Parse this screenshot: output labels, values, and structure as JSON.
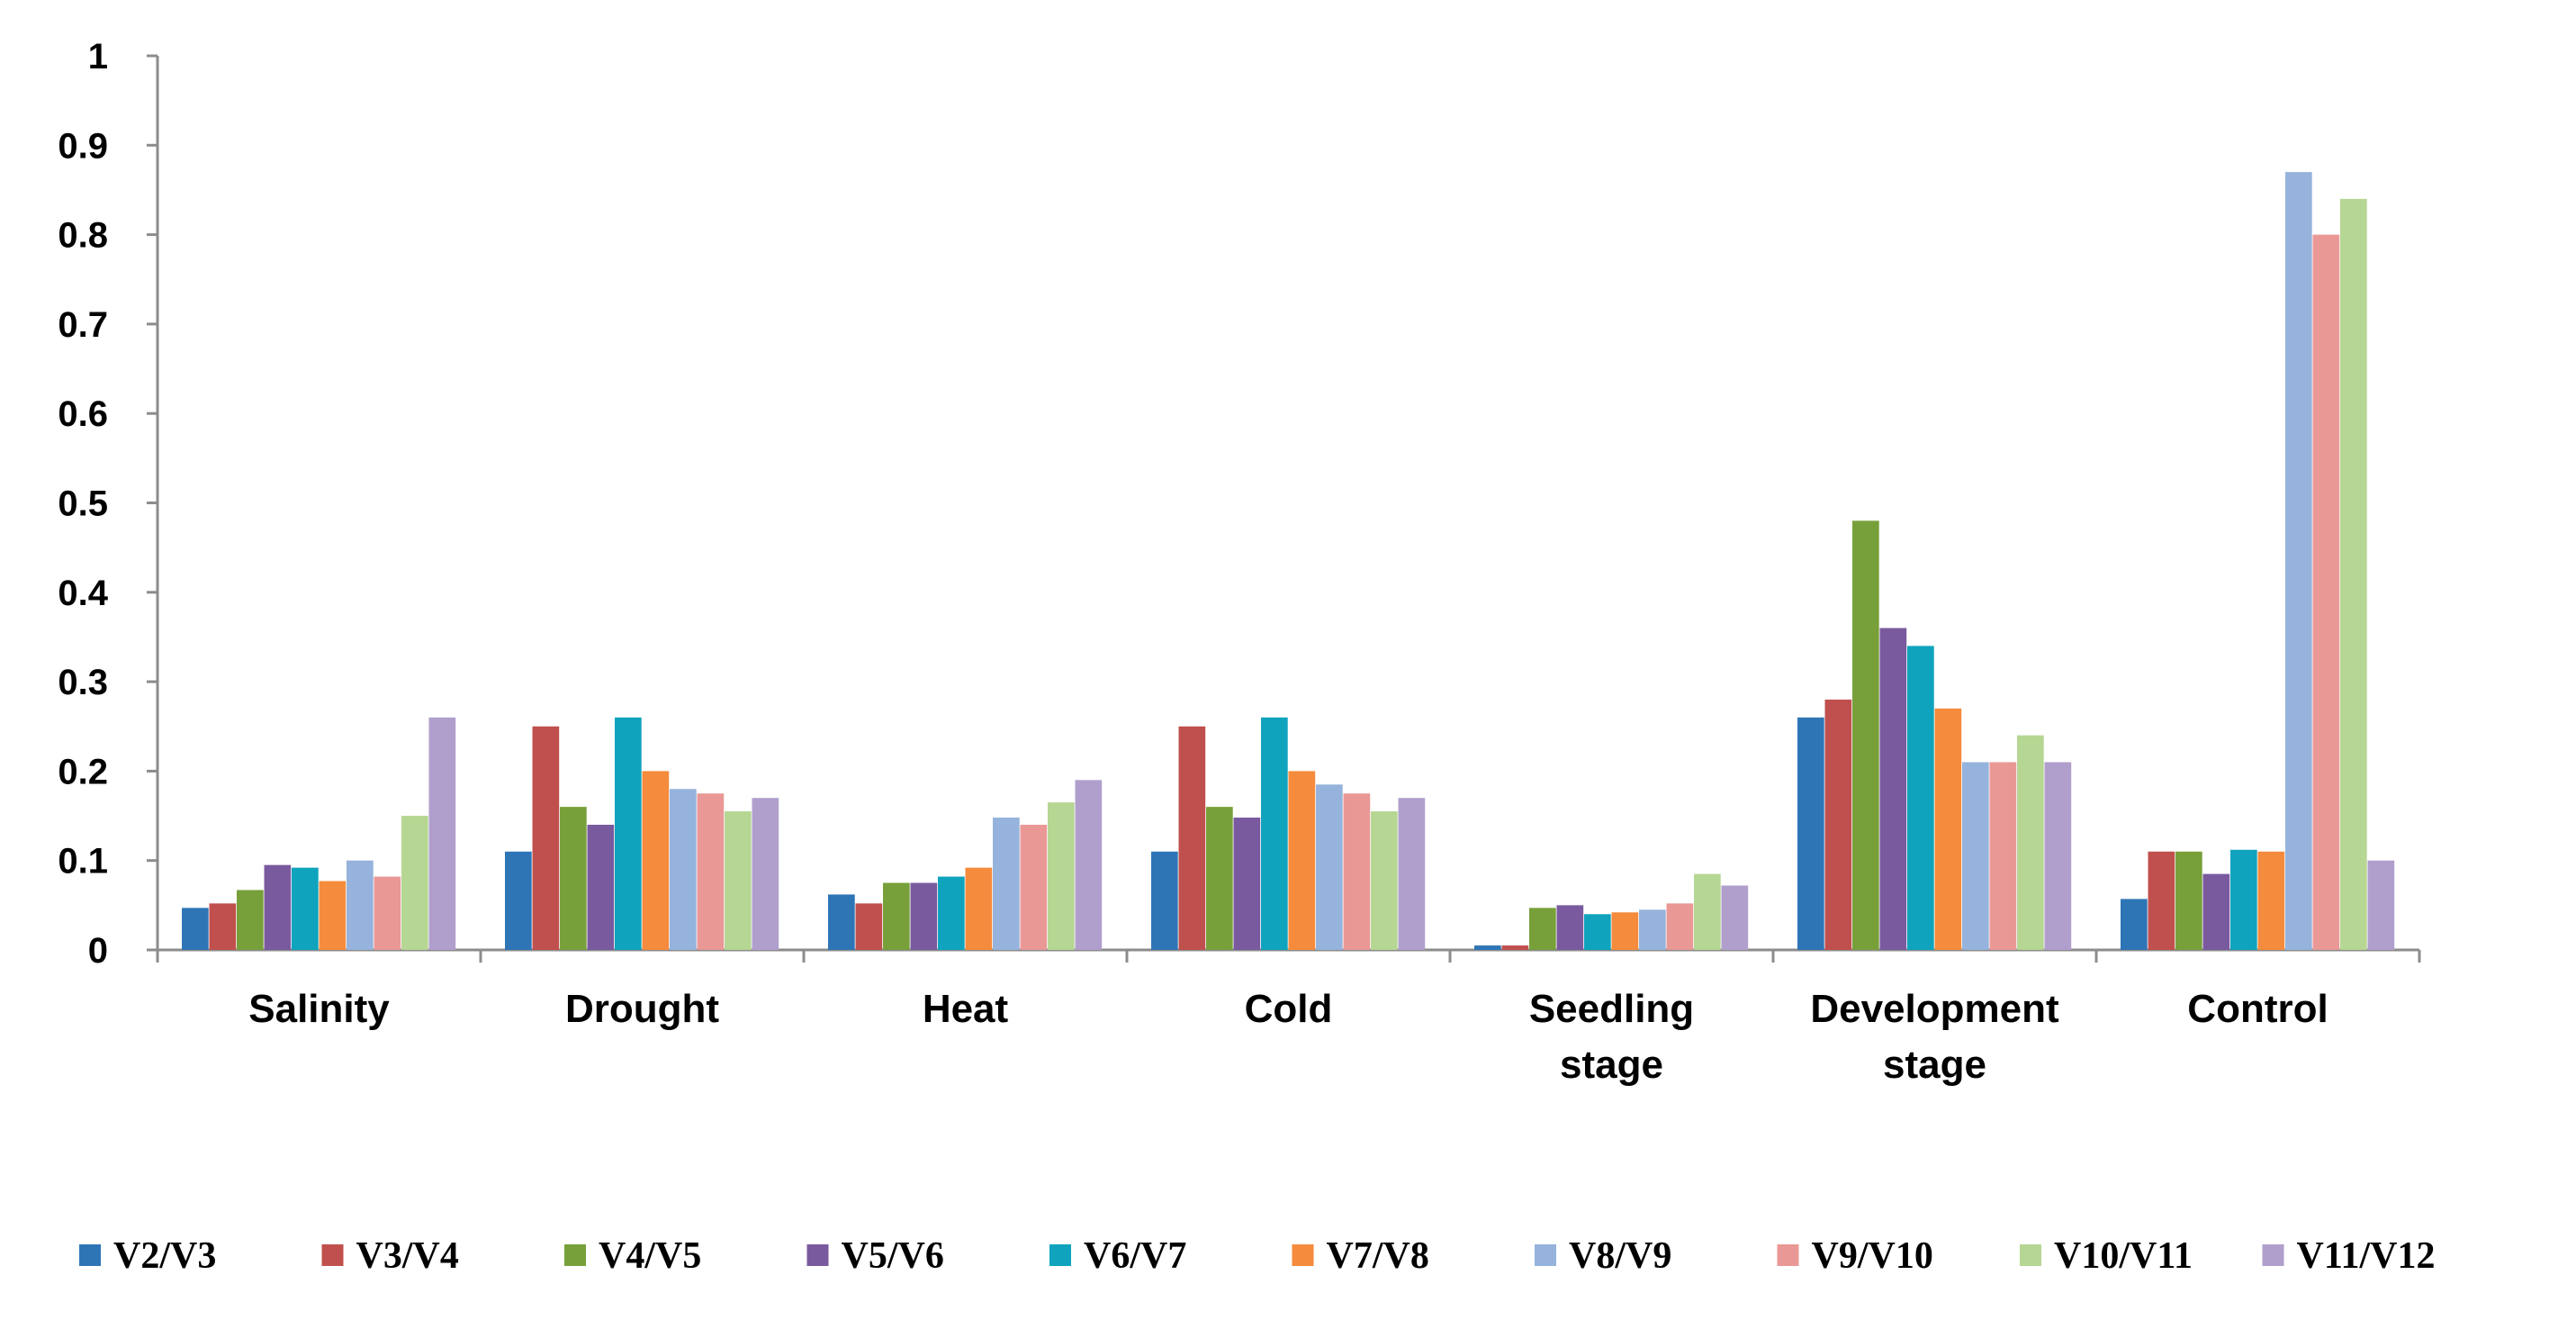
{
  "chart_data": {
    "type": "bar",
    "title": "",
    "xlabel": "",
    "ylabel": "",
    "ylim": [
      0,
      1
    ],
    "yticks": [
      "0",
      "0.1",
      "0.2",
      "0.3",
      "0.4",
      "0.5",
      "0.6",
      "0.7",
      "0.8",
      "0.9",
      "1"
    ],
    "grid": false,
    "legend_position": "bottom",
    "categories": [
      [
        "Salinity"
      ],
      [
        "Drought"
      ],
      [
        "Heat"
      ],
      [
        "Cold"
      ],
      [
        "Seedling",
        "stage"
      ],
      [
        "Development",
        "stage"
      ],
      [
        "Control"
      ]
    ],
    "series": [
      {
        "name": "V2/V3",
        "color": "#2e75b6",
        "values": [
          0.047,
          0.11,
          0.062,
          0.11,
          0.005,
          0.26,
          0.057
        ]
      },
      {
        "name": "V3/V4",
        "color": "#c0504d",
        "values": [
          0.052,
          0.25,
          0.052,
          0.25,
          0.005,
          0.28,
          0.11
        ]
      },
      {
        "name": "V4/V5",
        "color": "#77a03a",
        "values": [
          0.067,
          0.16,
          0.075,
          0.16,
          0.047,
          0.48,
          0.11
        ]
      },
      {
        "name": "V5/V6",
        "color": "#7a5a9e",
        "values": [
          0.095,
          0.14,
          0.075,
          0.148,
          0.05,
          0.36,
          0.085
        ]
      },
      {
        "name": "V6/V7",
        "color": "#0fa3bd",
        "values": [
          0.092,
          0.26,
          0.082,
          0.26,
          0.04,
          0.34,
          0.112
        ]
      },
      {
        "name": "V7/V8",
        "color": "#f58b3c",
        "values": [
          0.077,
          0.2,
          0.092,
          0.2,
          0.042,
          0.27,
          0.11
        ]
      },
      {
        "name": "V8/V9",
        "color": "#95b3dc",
        "values": [
          0.1,
          0.18,
          0.148,
          0.185,
          0.045,
          0.21,
          0.87
        ]
      },
      {
        "name": "V9/V10",
        "color": "#e99896",
        "values": [
          0.082,
          0.175,
          0.14,
          0.175,
          0.052,
          0.21,
          0.8
        ]
      },
      {
        "name": "V10/V11",
        "color": "#b6d693",
        "values": [
          0.15,
          0.155,
          0.165,
          0.155,
          0.085,
          0.24,
          0.84
        ]
      },
      {
        "name": "V11/V12",
        "color": "#b09fcc",
        "values": [
          0.26,
          0.17,
          0.19,
          0.17,
          0.072,
          0.21,
          0.1
        ]
      }
    ]
  }
}
